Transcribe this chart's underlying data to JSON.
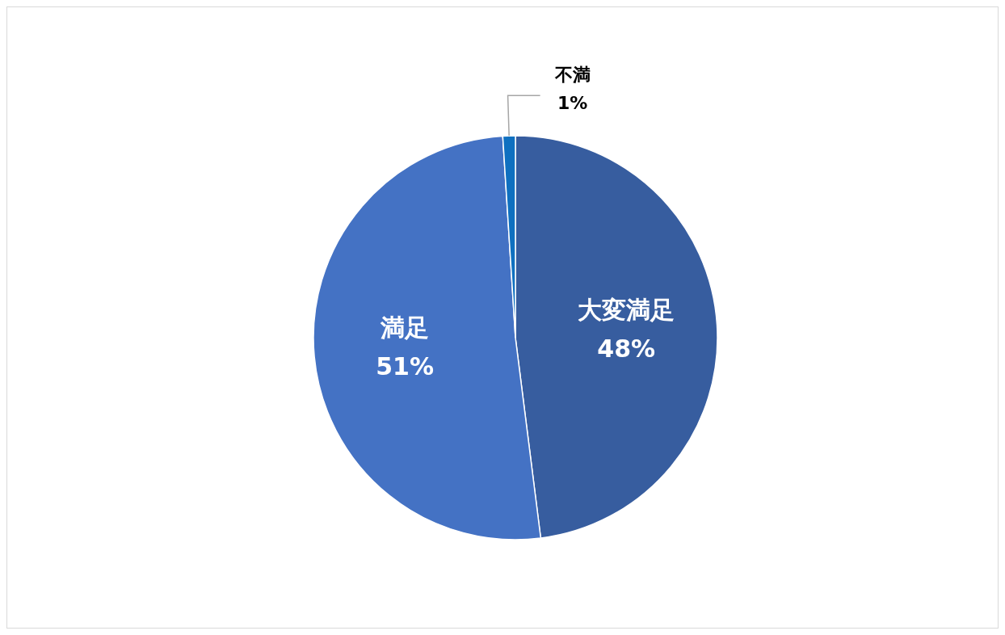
{
  "chart_data": {
    "type": "pie",
    "categories": [
      "大変満足",
      "満足",
      "不満"
    ],
    "values": [
      48,
      51,
      1
    ],
    "colors": [
      "#375d9f",
      "#4472c4",
      "#0f70c0"
    ],
    "value_labels": [
      "48%",
      "51%",
      "1%"
    ]
  }
}
